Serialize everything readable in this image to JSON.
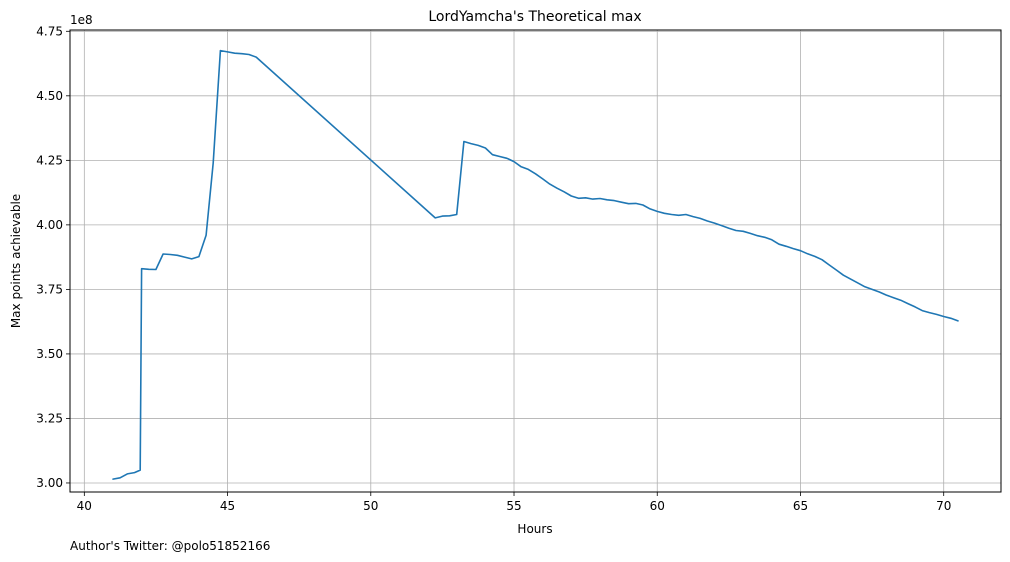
{
  "chart_data": {
    "type": "line",
    "title": "LordYamcha's Theoretical max",
    "xlabel": "Hours",
    "ylabel": "Max points achievable",
    "y_offset_label": "1e8",
    "footer": "Author's Twitter: @polo51852166",
    "xlim": [
      39.5,
      72
    ],
    "ylim": [
      2.965,
      4.755
    ],
    "x_ticks": [
      40,
      45,
      50,
      55,
      60,
      65,
      70
    ],
    "y_ticks": [
      3.0,
      3.25,
      3.5,
      3.75,
      4.0,
      4.25,
      4.5,
      4.75
    ],
    "y_tick_labels": [
      "3.00",
      "3.25",
      "3.50",
      "3.75",
      "4.00",
      "4.25",
      "4.50",
      "4.75"
    ],
    "grid": true,
    "line_color": "#1f77b4",
    "x": [
      41.0,
      41.25,
      41.5,
      41.75,
      41.95,
      42.0,
      42.25,
      42.5,
      42.75,
      43.0,
      43.25,
      43.5,
      43.75,
      44.0,
      44.25,
      44.5,
      44.75,
      45.0,
      45.25,
      45.5,
      45.75,
      46.0,
      52.25,
      52.5,
      52.75,
      53.0,
      53.25,
      53.5,
      53.75,
      54.0,
      54.25,
      54.5,
      54.75,
      55.0,
      55.25,
      55.5,
      55.75,
      56.0,
      56.25,
      56.5,
      56.75,
      57.0,
      57.25,
      57.5,
      57.75,
      58.0,
      58.25,
      58.5,
      58.75,
      59.0,
      59.25,
      59.5,
      59.75,
      60.0,
      60.25,
      60.5,
      60.75,
      61.0,
      61.25,
      61.5,
      61.75,
      62.0,
      62.25,
      62.5,
      62.75,
      63.0,
      63.25,
      63.5,
      63.75,
      64.0,
      64.25,
      64.5,
      64.75,
      65.0,
      65.25,
      65.5,
      65.75,
      66.0,
      66.25,
      66.5,
      66.75,
      67.0,
      67.25,
      67.5,
      67.75,
      68.0,
      68.25,
      68.5,
      68.75,
      69.0,
      69.25,
      69.5,
      69.75,
      70.0,
      70.25,
      70.5
    ],
    "y": [
      3.015,
      3.02,
      3.035,
      3.04,
      3.05,
      3.83,
      3.828,
      3.827,
      3.887,
      3.885,
      3.882,
      3.875,
      3.868,
      3.877,
      3.96,
      4.24,
      4.675,
      4.67,
      4.665,
      4.663,
      4.66,
      4.65,
      4.027,
      4.034,
      4.035,
      4.04,
      4.323,
      4.315,
      4.308,
      4.298,
      4.272,
      4.265,
      4.258,
      4.245,
      4.225,
      4.215,
      4.198,
      4.178,
      4.158,
      4.142,
      4.128,
      4.112,
      4.103,
      4.105,
      4.1,
      4.102,
      4.097,
      4.094,
      4.088,
      4.082,
      4.083,
      4.077,
      4.062,
      4.052,
      4.045,
      4.04,
      4.037,
      4.04,
      4.032,
      4.025,
      4.015,
      4.007,
      3.997,
      3.987,
      3.978,
      3.975,
      3.967,
      3.958,
      3.952,
      3.942,
      3.925,
      3.917,
      3.908,
      3.9,
      3.888,
      3.878,
      3.865,
      3.845,
      3.825,
      3.805,
      3.79,
      3.775,
      3.76,
      3.75,
      3.74,
      3.728,
      3.718,
      3.708,
      3.695,
      3.682,
      3.668,
      3.66,
      3.653,
      3.645,
      3.638,
      3.628
    ]
  }
}
